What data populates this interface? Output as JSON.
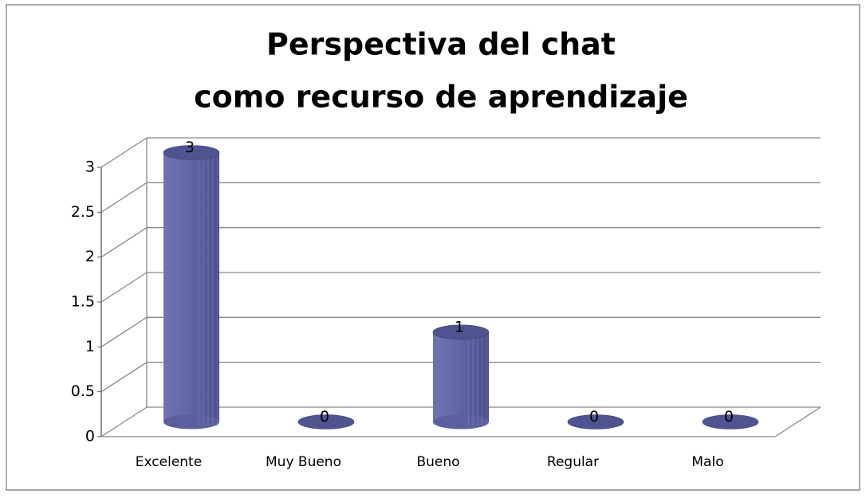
{
  "chart_data": {
    "type": "bar3d",
    "title": [
      "Perspectiva del chat",
      "como recurso de aprendizaje"
    ],
    "categories": [
      "Excelente",
      "Muy Bueno",
      "Bueno",
      "Regular",
      "Malo"
    ],
    "values": [
      3,
      0,
      1,
      0,
      0
    ],
    "color": "#5b5f9e",
    "ylim": [
      0,
      3
    ],
    "yticks": [
      0,
      0.5,
      1,
      1.5,
      2,
      2.5,
      3
    ],
    "grid": true
  }
}
